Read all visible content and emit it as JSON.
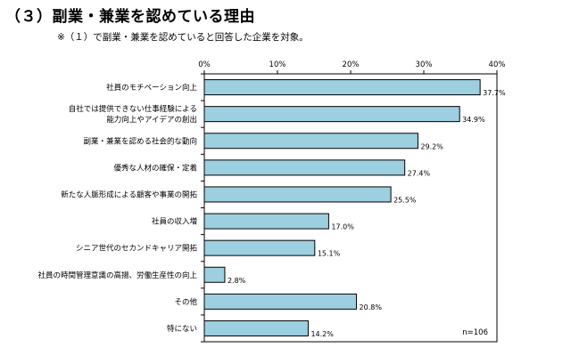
{
  "title": "（３）副業・兼業を認めている理由",
  "note": "※（１）で副業・兼業を認めていると回答した企業を対象。",
  "chart_data": {
    "type": "bar",
    "orientation": "horizontal",
    "categories": [
      [
        "社員のモチベーション向上"
      ],
      [
        "自社では提供できない仕事経験による",
        "能力向上やアイデアの創出"
      ],
      [
        "副業・兼業を認める社会的な動向"
      ],
      [
        "優秀な人材の確保・定着"
      ],
      [
        "新たな人脈形成による顧客や事業の開拓"
      ],
      [
        "社員の収入増"
      ],
      [
        "シニア世代のセカンドキャリア開拓"
      ],
      [
        "社員の時間管理意識の高揚、労働生産性の向上"
      ],
      [
        "その他"
      ],
      [
        "特にない"
      ]
    ],
    "values": [
      37.7,
      34.9,
      29.2,
      27.4,
      25.5,
      17.0,
      15.1,
      2.8,
      20.8,
      14.2
    ],
    "value_labels": [
      "37.7%",
      "34.9%",
      "29.2%",
      "27.4%",
      "25.5%",
      "17.0%",
      "15.1%",
      "2.8%",
      "20.8%",
      "14.2%"
    ],
    "xlim": [
      0,
      40
    ],
    "ticks": [
      0,
      10,
      20,
      30,
      40
    ],
    "tick_labels": [
      "0%",
      "10%",
      "20%",
      "30%",
      "40%"
    ],
    "axis_position": "top",
    "bar_color": "#9ccfdf",
    "bar_stroke": "#000000",
    "grid": false,
    "annotation": "n=106"
  }
}
